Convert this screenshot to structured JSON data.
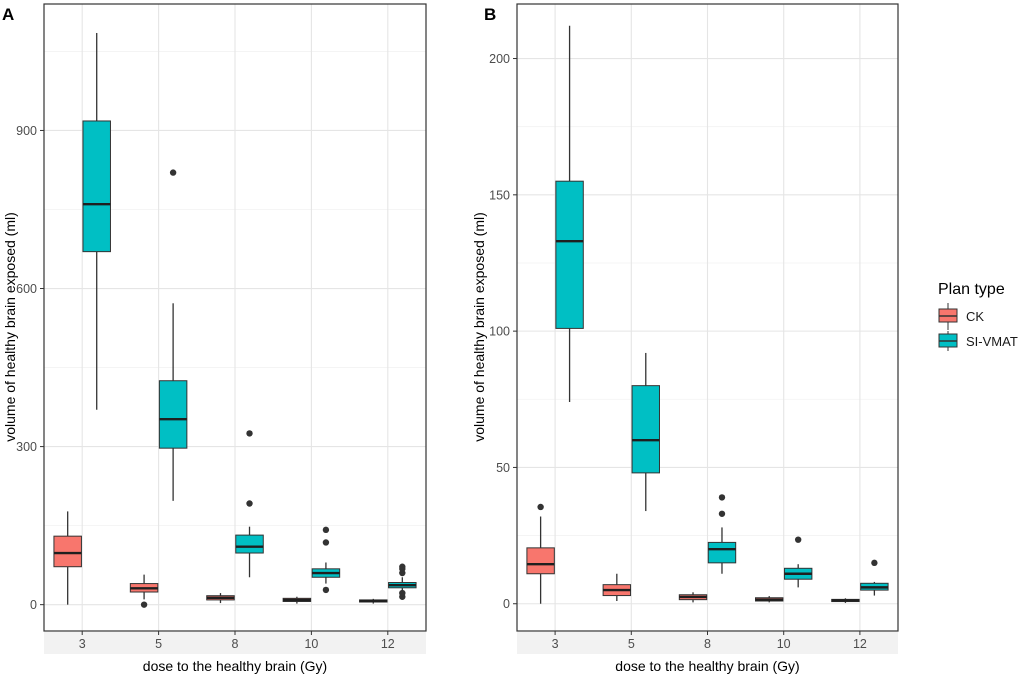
{
  "figure": {
    "legend": {
      "title": "Plan type",
      "entries": [
        {
          "label": "CK",
          "color": "#F8766D"
        },
        {
          "label": "SI-VMAT",
          "color": "#00BFC4"
        }
      ]
    }
  },
  "chart_data": [
    {
      "type": "box",
      "panel_label": "A",
      "xlabel": "dose to the healthy brain (Gy)",
      "ylabel": "volume of healthy brain exposed (ml)",
      "categories": [
        "3",
        "5",
        "8",
        "10",
        "12"
      ],
      "yticks": [
        0,
        300,
        600,
        900
      ],
      "ylim": [
        -50,
        1140
      ],
      "series": [
        {
          "name": "CK",
          "boxes": [
            {
              "category": "3",
              "min": 0,
              "q1": 72,
              "median": 98,
              "q3": 130,
              "max": 177,
              "outliers": []
            },
            {
              "category": "5",
              "min": 10,
              "q1": 24,
              "median": 31,
              "q3": 40,
              "max": 57,
              "outliers": [
                0
              ]
            },
            {
              "category": "8",
              "min": 3,
              "q1": 9,
              "median": 13,
              "q3": 17,
              "max": 22,
              "outliers": []
            },
            {
              "category": "10",
              "min": 2,
              "q1": 6,
              "median": 9,
              "q3": 12,
              "max": 15,
              "outliers": []
            },
            {
              "category": "12",
              "min": 2,
              "q1": 5,
              "median": 7,
              "q3": 9,
              "max": 11,
              "outliers": []
            }
          ]
        },
        {
          "name": "SI-VMAT",
          "boxes": [
            {
              "category": "3",
              "min": 370,
              "q1": 670,
              "median": 760,
              "q3": 918,
              "max": 1085,
              "outliers": []
            },
            {
              "category": "5",
              "min": 197,
              "q1": 297,
              "median": 352,
              "q3": 425,
              "max": 572,
              "outliers": [
                820
              ]
            },
            {
              "category": "8",
              "min": 52,
              "q1": 98,
              "median": 110,
              "q3": 132,
              "max": 148,
              "outliers": [
                192,
                325
              ]
            },
            {
              "category": "10",
              "min": 40,
              "q1": 52,
              "median": 60,
              "q3": 68,
              "max": 80,
              "outliers": [
                28,
                118,
                142
              ]
            },
            {
              "category": "12",
              "min": 26,
              "q1": 32,
              "median": 37,
              "q3": 42,
              "max": 52,
              "outliers": [
                15,
                22,
                60,
                68,
                72
              ]
            }
          ]
        }
      ]
    },
    {
      "type": "box",
      "panel_label": "B",
      "xlabel": "dose to the healthy brain (Gy)",
      "ylabel": "volume of healthy brain exposed (ml)",
      "categories": [
        "3",
        "5",
        "8",
        "10",
        "12"
      ],
      "yticks": [
        0,
        50,
        100,
        150,
        200
      ],
      "ylim": [
        -10,
        220
      ],
      "series": [
        {
          "name": "CK",
          "boxes": [
            {
              "category": "3",
              "min": 0,
              "q1": 11,
              "median": 14.5,
              "q3": 20.5,
              "max": 32,
              "outliers": [
                35.5
              ]
            },
            {
              "category": "5",
              "min": 1,
              "q1": 3,
              "median": 5,
              "q3": 7,
              "max": 11,
              "outliers": []
            },
            {
              "category": "8",
              "min": 0.5,
              "q1": 1.5,
              "median": 2.5,
              "q3": 3.3,
              "max": 4.2,
              "outliers": []
            },
            {
              "category": "10",
              "min": 0.5,
              "q1": 1,
              "median": 1.5,
              "q3": 2.2,
              "max": 2.8,
              "outliers": []
            },
            {
              "category": "12",
              "min": 0.3,
              "q1": 0.8,
              "median": 1.2,
              "q3": 1.6,
              "max": 2,
              "outliers": []
            }
          ]
        },
        {
          "name": "SI-VMAT",
          "boxes": [
            {
              "category": "3",
              "min": 74,
              "q1": 101,
              "median": 133,
              "q3": 155,
              "max": 212,
              "outliers": []
            },
            {
              "category": "5",
              "min": 34,
              "q1": 48,
              "median": 60,
              "q3": 80,
              "max": 92,
              "outliers": []
            },
            {
              "category": "8",
              "min": 11,
              "q1": 15,
              "median": 20,
              "q3": 22.5,
              "max": 28,
              "outliers": [
                33,
                39
              ]
            },
            {
              "category": "10",
              "min": 6,
              "q1": 9,
              "median": 11,
              "q3": 13,
              "max": 14.5,
              "outliers": [
                23.5
              ]
            },
            {
              "category": "12",
              "min": 3,
              "q1": 5,
              "median": 6,
              "q3": 7.5,
              "max": 8,
              "outliers": [
                15
              ]
            }
          ]
        }
      ]
    }
  ]
}
